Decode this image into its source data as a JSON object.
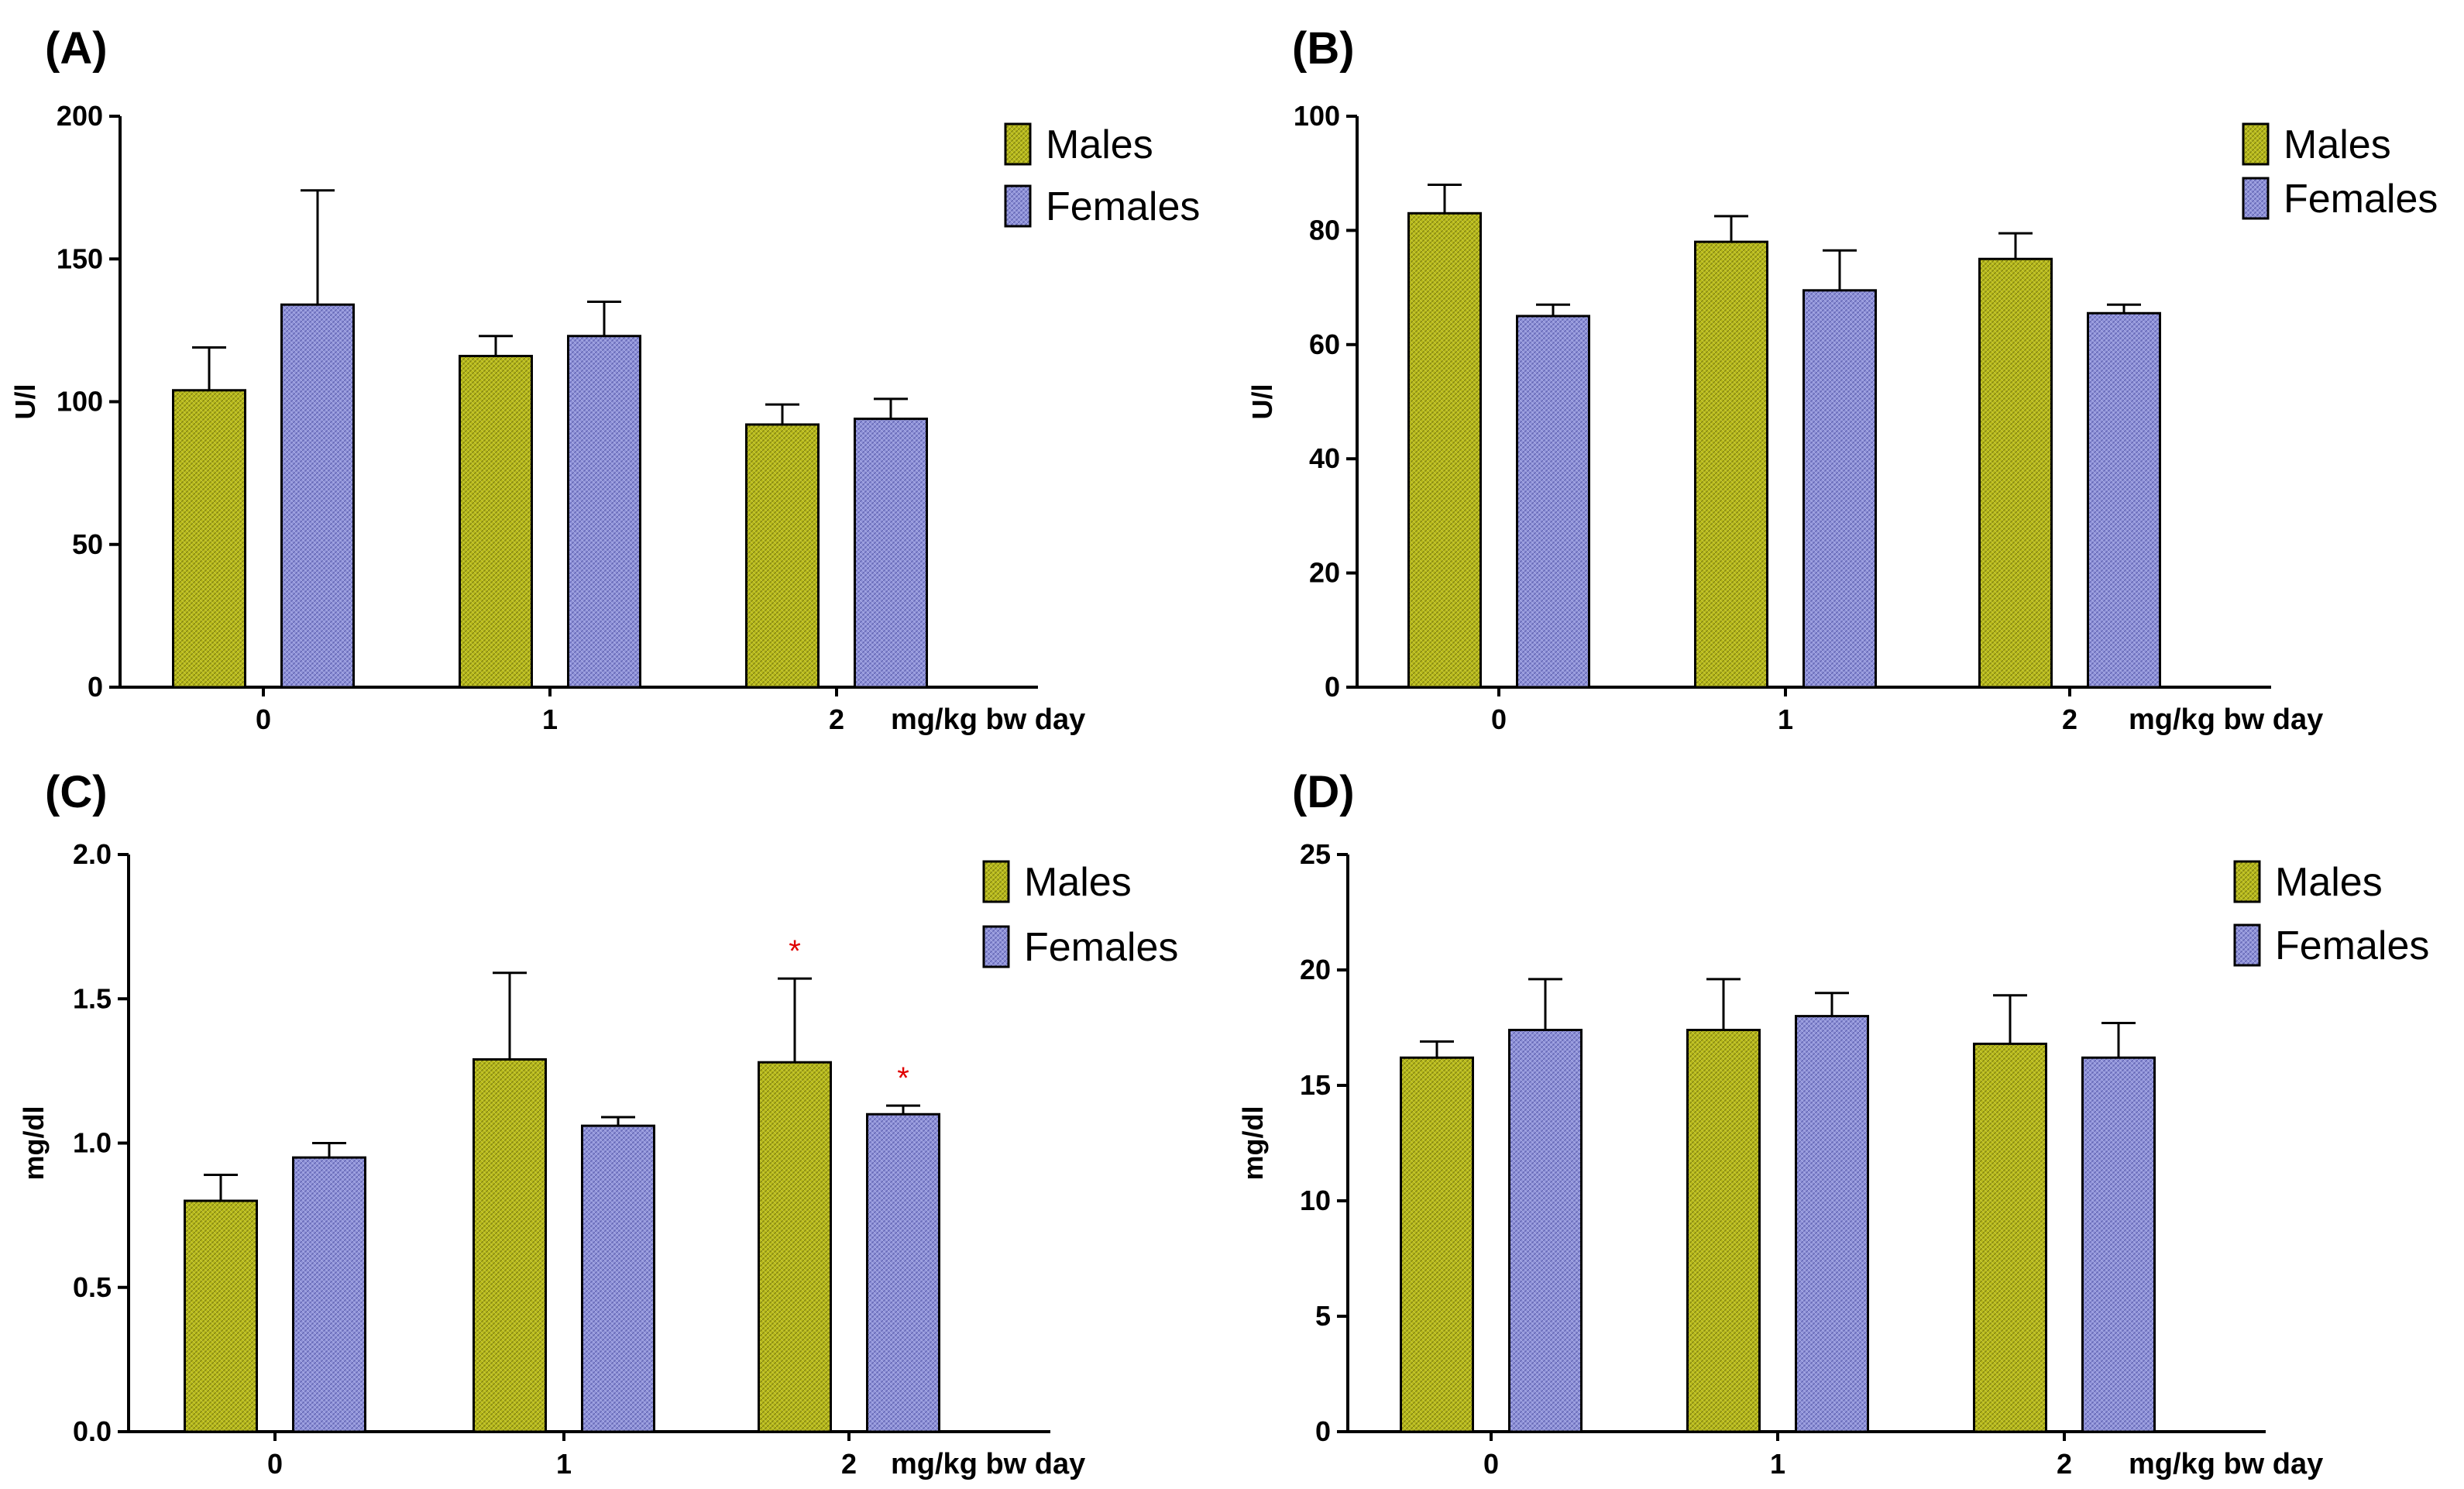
{
  "colors": {
    "males": "#b6b81a",
    "females": "#8f92d8",
    "axis": "#000000",
    "significance": "#e00000"
  },
  "legend": {
    "males": "Males",
    "females": "Females"
  },
  "chart_data": [
    {
      "panel": "(A)",
      "type": "bar",
      "categories": [
        "0",
        "1",
        "2"
      ],
      "xlabel": "mg/kg bw day",
      "ylabel": "U/l",
      "ylim": [
        0,
        200
      ],
      "yticks": [
        "0",
        "50",
        "100",
        "150",
        "200"
      ],
      "legend_position": "top-right",
      "series": [
        {
          "name": "Males",
          "values": [
            104,
            116,
            92
          ],
          "errors": [
            15,
            7,
            7
          ]
        },
        {
          "name": "Females",
          "values": [
            134,
            123,
            94
          ],
          "errors": [
            40,
            12,
            7
          ]
        }
      ],
      "annotations": []
    },
    {
      "panel": "(B)",
      "type": "bar",
      "categories": [
        "0",
        "1",
        "2"
      ],
      "xlabel": "mg/kg bw day",
      "ylabel": "U/l",
      "ylim": [
        0,
        100
      ],
      "yticks": [
        "0",
        "20",
        "40",
        "60",
        "80",
        "100"
      ],
      "legend_position": "top-right",
      "series": [
        {
          "name": "Males",
          "values": [
            83,
            78,
            75
          ],
          "errors": [
            5,
            4.5,
            4.5
          ]
        },
        {
          "name": "Females",
          "values": [
            65,
            69.5,
            65.5
          ],
          "errors": [
            2,
            7,
            1.5
          ]
        }
      ],
      "annotations": []
    },
    {
      "panel": "(C)",
      "type": "bar",
      "categories": [
        "0",
        "1",
        "2"
      ],
      "xlabel": "mg/kg bw day",
      "ylabel": "mg/dl",
      "ylim": [
        0,
        2.0
      ],
      "yticks": [
        "0.0",
        "0.5",
        "1.0",
        "1.5",
        "2.0"
      ],
      "legend_position": "top-right",
      "series": [
        {
          "name": "Males",
          "values": [
            0.8,
            1.29,
            1.28
          ],
          "errors": [
            0.09,
            0.3,
            0.29
          ]
        },
        {
          "name": "Females",
          "values": [
            0.95,
            1.06,
            1.1
          ],
          "errors": [
            0.05,
            0.03,
            0.03
          ]
        }
      ],
      "annotations": [
        {
          "text": "*",
          "series": 0,
          "category": 2
        },
        {
          "text": "*",
          "series": 1,
          "category": 2
        }
      ]
    },
    {
      "panel": "(D)",
      "type": "bar",
      "categories": [
        "0",
        "1",
        "2"
      ],
      "xlabel": "mg/kg bw day",
      "ylabel": "mg/dl",
      "ylim": [
        0,
        25
      ],
      "yticks": [
        "0",
        "5",
        "10",
        "15",
        "20",
        "25"
      ],
      "legend_position": "top-right",
      "series": [
        {
          "name": "Males",
          "values": [
            16.2,
            17.4,
            16.8
          ],
          "errors": [
            0.7,
            2.2,
            2.1
          ]
        },
        {
          "name": "Females",
          "values": [
            17.4,
            18.0,
            16.2
          ],
          "errors": [
            2.2,
            1.0,
            1.5
          ]
        }
      ],
      "annotations": []
    }
  ]
}
